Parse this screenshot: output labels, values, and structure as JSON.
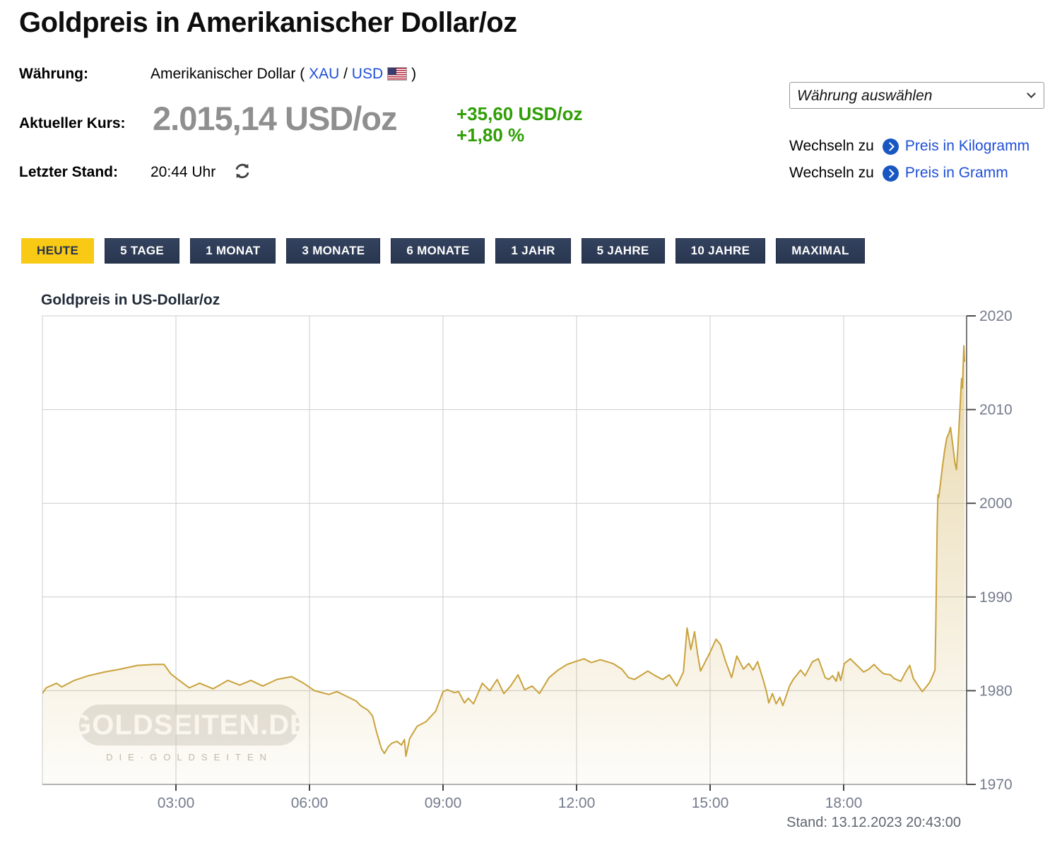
{
  "page": {
    "title": "Goldpreis in Amerikanischer Dollar/oz"
  },
  "info": {
    "currency_label": "Währung:",
    "currency_value_prefix": "Amerikanischer Dollar (",
    "currency_link_xau": "XAU",
    "currency_separator": "/",
    "currency_link_usd": "USD",
    "currency_value_suffix": ")",
    "price_label": "Aktueller Kurs:",
    "price_value": "2.015,14 USD/oz",
    "change_abs": "+35,60 USD/oz",
    "change_pct": "+1,80 %",
    "last_update_label": "Letzter Stand:",
    "last_update_value": "20:44 Uhr"
  },
  "controls": {
    "currency_select_value": "Währung auswählen",
    "switch_label": "Wechseln zu",
    "switch_link_kg": "Preis in Kilogramm",
    "switch_link_g": "Preis in Gramm"
  },
  "tabs": [
    {
      "label": "HEUTE",
      "active": true
    },
    {
      "label": "5 TAGE",
      "active": false
    },
    {
      "label": "1 MONAT",
      "active": false
    },
    {
      "label": "3 MONATE",
      "active": false
    },
    {
      "label": "6 MONATE",
      "active": false
    },
    {
      "label": "1 JAHR",
      "active": false
    },
    {
      "label": "5 JAHRE",
      "active": false
    },
    {
      "label": "10 JAHRE",
      "active": false
    },
    {
      "label": "MAXIMAL",
      "active": false
    }
  ],
  "watermark": {
    "text": "GOLDSEITEN.DE",
    "subtext": "DIE·GOLDSEITEN"
  },
  "colors": {
    "accent_gold": "#f8c915",
    "tab_navy": "#2e3c55",
    "price_gray": "#8f8f8f",
    "change_green": "#2f9e05",
    "link_blue": "#1f4fd8",
    "line_gold": "#c9a23c"
  },
  "chart_data": {
    "type": "area",
    "title": "Goldpreis in US-Dollar/oz",
    "stand": "Stand: 13.12.2023 20:43:00",
    "x_ticks": [
      "03:00",
      "06:00",
      "09:00",
      "12:00",
      "15:00",
      "18:00"
    ],
    "y_ticks": [
      1970,
      1980,
      1990,
      2000,
      2010,
      2020
    ],
    "ylim": [
      1970,
      2020
    ],
    "xlim_hours": [
      0,
      20.77
    ],
    "grid": true,
    "legend": "none",
    "points": [
      [
        "00:00",
        1979.7
      ],
      [
        "00:05",
        1980.3
      ],
      [
        "00:19",
        1980.8
      ],
      [
        "00:26",
        1980.4
      ],
      [
        "00:43",
        1981.1
      ],
      [
        "01:02",
        1981.6
      ],
      [
        "01:24",
        1982.0
      ],
      [
        "01:45",
        1982.3
      ],
      [
        "02:08",
        1982.7
      ],
      [
        "02:31",
        1982.8
      ],
      [
        "02:44",
        1982.8
      ],
      [
        "02:53",
        1981.8
      ],
      [
        "03:06",
        1981.0
      ],
      [
        "03:18",
        1980.3
      ],
      [
        "03:32",
        1980.8
      ],
      [
        "03:50",
        1980.2
      ],
      [
        "04:10",
        1981.1
      ],
      [
        "04:26",
        1980.6
      ],
      [
        "04:41",
        1981.1
      ],
      [
        "04:57",
        1980.5
      ],
      [
        "05:16",
        1981.2
      ],
      [
        "05:36",
        1981.5
      ],
      [
        "05:52",
        1980.8
      ],
      [
        "06:07",
        1980.0
      ],
      [
        "06:26",
        1979.6
      ],
      [
        "06:37",
        1979.9
      ],
      [
        "06:50",
        1979.4
      ],
      [
        "07:03",
        1978.9
      ],
      [
        "07:09",
        1978.4
      ],
      [
        "07:19",
        1977.9
      ],
      [
        "07:25",
        1977.3
      ],
      [
        "07:30",
        1975.7
      ],
      [
        "07:37",
        1973.8
      ],
      [
        "07:41",
        1973.3
      ],
      [
        "07:46",
        1974.0
      ],
      [
        "07:51",
        1974.4
      ],
      [
        "07:58",
        1974.6
      ],
      [
        "08:04",
        1974.2
      ],
      [
        "08:08",
        1974.8
      ],
      [
        "08:10",
        1973.0
      ],
      [
        "08:15",
        1974.9
      ],
      [
        "08:25",
        1976.2
      ],
      [
        "08:37",
        1976.7
      ],
      [
        "08:50",
        1977.8
      ],
      [
        "09:00",
        1979.9
      ],
      [
        "09:06",
        1980.1
      ],
      [
        "09:15",
        1979.8
      ],
      [
        "09:21",
        1979.9
      ],
      [
        "09:29",
        1978.7
      ],
      [
        "09:34",
        1979.2
      ],
      [
        "09:41",
        1978.6
      ],
      [
        "09:53",
        1980.8
      ],
      [
        "10:03",
        1980.0
      ],
      [
        "10:13",
        1981.2
      ],
      [
        "10:22",
        1979.7
      ],
      [
        "10:31",
        1980.5
      ],
      [
        "10:41",
        1981.7
      ],
      [
        "10:50",
        1980.1
      ],
      [
        "11:00",
        1980.5
      ],
      [
        "11:10",
        1979.7
      ],
      [
        "11:23",
        1981.4
      ],
      [
        "11:35",
        1982.2
      ],
      [
        "11:47",
        1982.8
      ],
      [
        "11:58",
        1983.1
      ],
      [
        "12:10",
        1983.4
      ],
      [
        "12:20",
        1983.0
      ],
      [
        "12:32",
        1983.3
      ],
      [
        "12:49",
        1982.9
      ],
      [
        "13:01",
        1982.3
      ],
      [
        "13:10",
        1981.4
      ],
      [
        "13:18",
        1981.2
      ],
      [
        "13:36",
        1982.1
      ],
      [
        "13:46",
        1981.6
      ],
      [
        "13:56",
        1981.2
      ],
      [
        "14:05",
        1981.7
      ],
      [
        "14:15",
        1980.5
      ],
      [
        "14:24",
        1982.0
      ],
      [
        "14:29",
        1986.7
      ],
      [
        "14:34",
        1984.4
      ],
      [
        "14:39",
        1986.3
      ],
      [
        "14:43",
        1984.0
      ],
      [
        "14:47",
        1982.1
      ],
      [
        "15:00",
        1984.1
      ],
      [
        "15:08",
        1985.5
      ],
      [
        "15:14",
        1984.9
      ],
      [
        "15:21",
        1983.1
      ],
      [
        "15:29",
        1981.4
      ],
      [
        "15:36",
        1983.7
      ],
      [
        "15:45",
        1982.3
      ],
      [
        "15:52",
        1982.9
      ],
      [
        "15:58",
        1982.2
      ],
      [
        "16:04",
        1983.1
      ],
      [
        "16:11",
        1981.3
      ],
      [
        "16:16",
        1979.9
      ],
      [
        "16:19",
        1978.7
      ],
      [
        "16:24",
        1979.7
      ],
      [
        "16:29",
        1978.6
      ],
      [
        "16:34",
        1979.3
      ],
      [
        "16:38",
        1978.4
      ],
      [
        "16:47",
        1980.5
      ],
      [
        "16:52",
        1981.2
      ],
      [
        "17:02",
        1982.2
      ],
      [
        "17:08",
        1981.6
      ],
      [
        "17:18",
        1983.1
      ],
      [
        "17:26",
        1983.4
      ],
      [
        "17:35",
        1981.4
      ],
      [
        "17:40",
        1981.2
      ],
      [
        "17:45",
        1981.6
      ],
      [
        "17:50",
        1981.0
      ],
      [
        "17:53",
        1982.0
      ],
      [
        "17:56",
        1981.1
      ],
      [
        "18:01",
        1982.9
      ],
      [
        "18:09",
        1983.4
      ],
      [
        "18:18",
        1982.7
      ],
      [
        "18:27",
        1982.0
      ],
      [
        "18:34",
        1982.3
      ],
      [
        "18:41",
        1982.8
      ],
      [
        "18:48",
        1982.2
      ],
      [
        "18:54",
        1981.8
      ],
      [
        "19:03",
        1981.7
      ],
      [
        "19:08",
        1981.3
      ],
      [
        "19:17",
        1981.0
      ],
      [
        "19:23",
        1981.9
      ],
      [
        "19:29",
        1982.7
      ],
      [
        "19:34",
        1981.3
      ],
      [
        "19:39",
        1980.7
      ],
      [
        "19:46",
        1979.9
      ],
      [
        "19:51",
        1980.4
      ],
      [
        "19:56",
        1980.9
      ],
      [
        "20:00",
        1981.6
      ],
      [
        "20:03",
        1982.2
      ],
      [
        "20:04",
        1986.0
      ],
      [
        "20:05",
        1992.0
      ],
      [
        "20:06",
        1997.5
      ],
      [
        "20:07",
        2000.9
      ],
      [
        "20:08",
        2000.6
      ],
      [
        "20:10",
        2001.8
      ],
      [
        "20:13",
        2003.8
      ],
      [
        "20:16",
        2005.6
      ],
      [
        "20:19",
        2007.0
      ],
      [
        "20:22",
        2007.5
      ],
      [
        "20:24",
        2008.1
      ],
      [
        "20:27",
        2006.3
      ],
      [
        "20:30",
        2004.3
      ],
      [
        "20:32",
        2003.6
      ],
      [
        "20:34",
        2006.0
      ],
      [
        "20:36",
        2009.0
      ],
      [
        "20:38",
        2012.0
      ],
      [
        "20:39",
        2013.3
      ],
      [
        "20:40",
        2012.3
      ],
      [
        "20:42",
        2016.8
      ],
      [
        "20:43",
        2015.1
      ]
    ]
  }
}
